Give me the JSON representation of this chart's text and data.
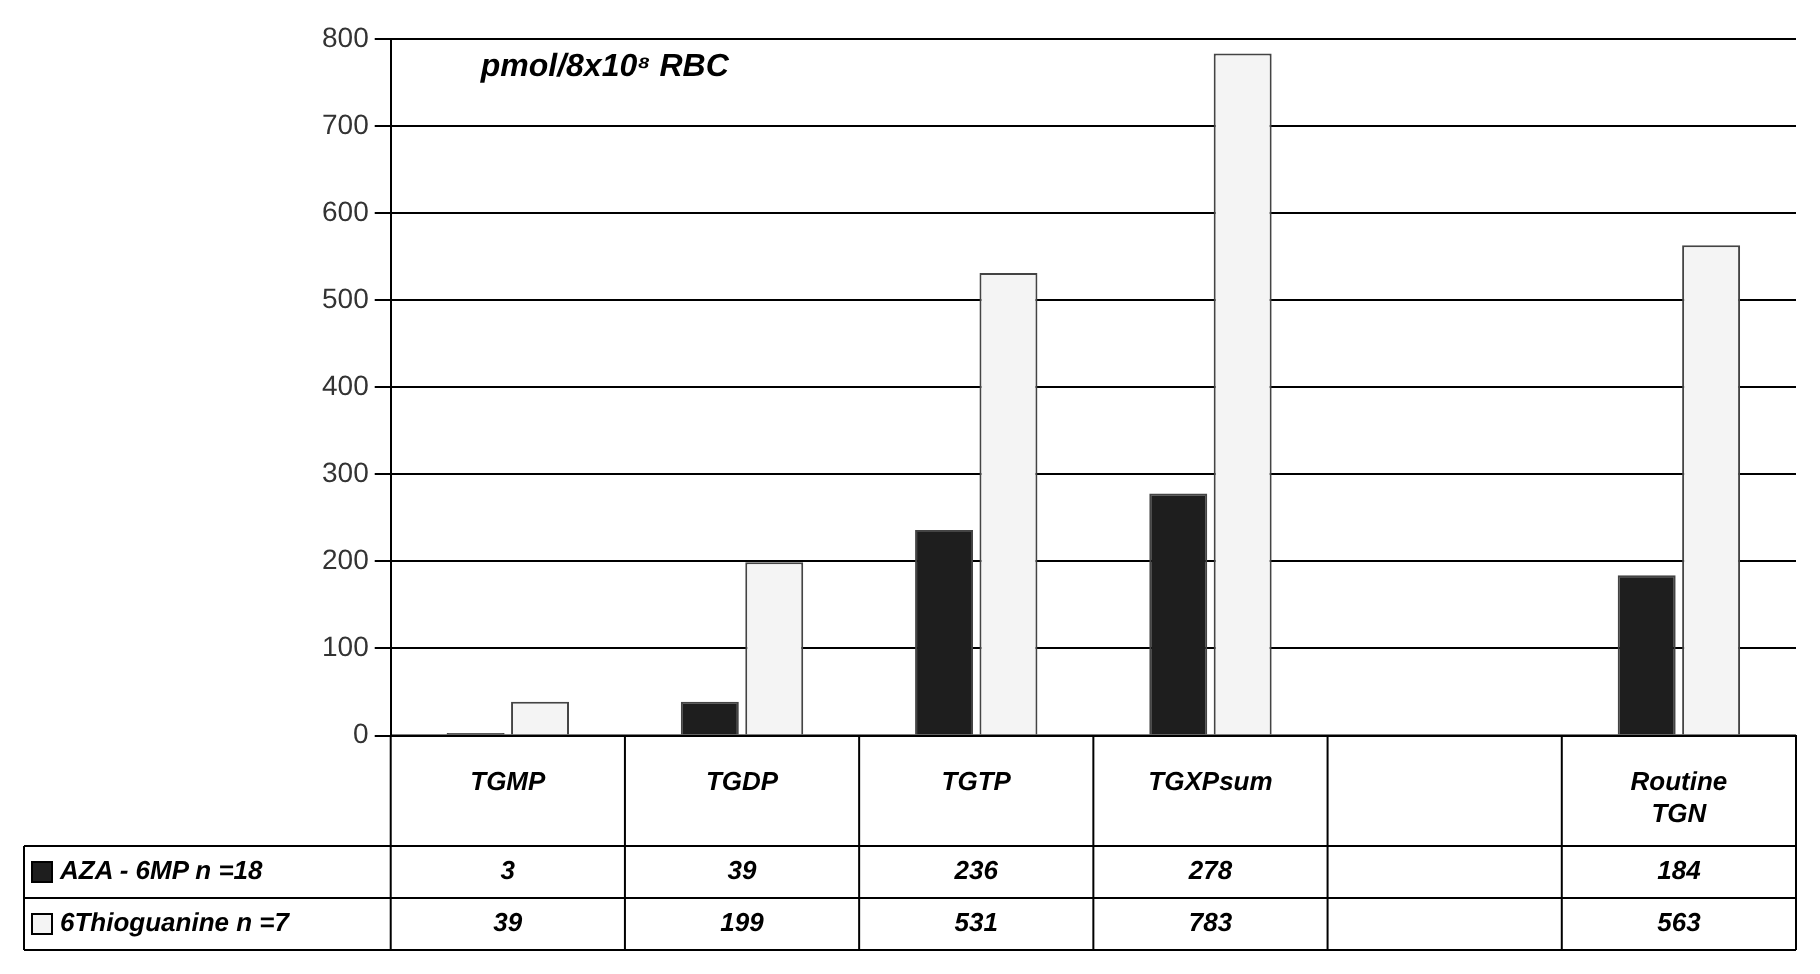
{
  "chart_data": {
    "type": "bar",
    "title": "pmol/8x10⁸ RBC",
    "categories": [
      "TGMP",
      "TGDP",
      "TGTP",
      "TGXPsum",
      null,
      "Routine TGN"
    ],
    "series": [
      {
        "name": "AZA - 6MP n =18",
        "color": "#1e1e1e",
        "values": [
          3,
          39,
          236,
          278,
          null,
          184
        ]
      },
      {
        "name": "6Thioguanine n =7",
        "color": "#f4f4f4",
        "values": [
          39,
          199,
          531,
          783,
          null,
          563
        ]
      }
    ],
    "ylim": [
      0,
      800
    ],
    "yticks": [
      0,
      100,
      200,
      300,
      400,
      500,
      600,
      700,
      800
    ],
    "grid": "y",
    "legend": "bottom",
    "data_labels": true
  }
}
